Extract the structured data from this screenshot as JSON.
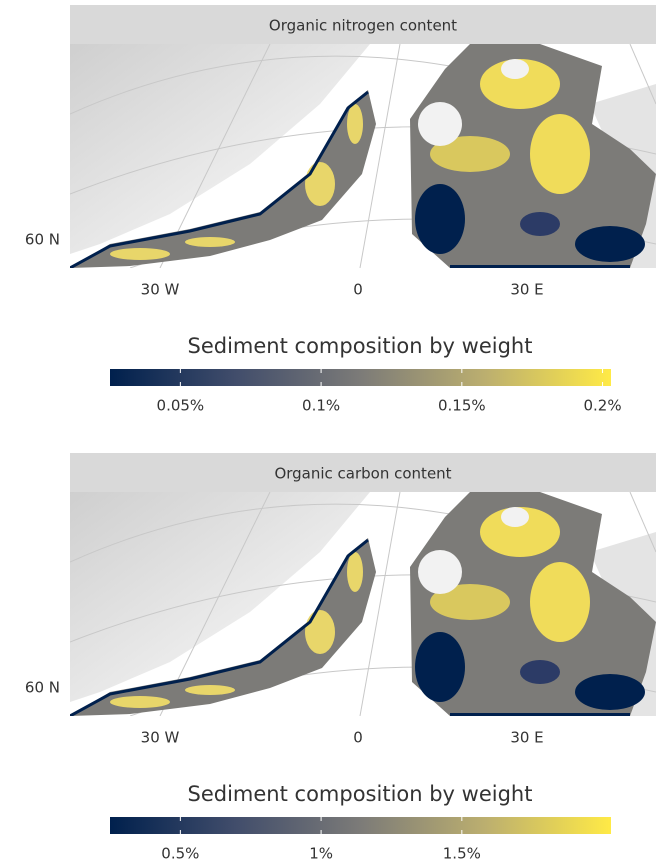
{
  "panels": [
    {
      "title": "Organic nitrogen content",
      "lat_label": "60 N",
      "lon_labels": [
        "30 W",
        "0",
        "30 E"
      ],
      "legend": {
        "title": "Sediment composition by weight",
        "lim": [
          0.025,
          0.203
        ],
        "ticks": [
          {
            "value": 0.05,
            "label": "0.05%"
          },
          {
            "value": 0.1,
            "label": "0.1%"
          },
          {
            "value": 0.15,
            "label": "0.15%"
          },
          {
            "value": 0.2,
            "label": "0.2%"
          }
        ]
      }
    },
    {
      "title": "Organic carbon content",
      "lat_label": "60 N",
      "lon_labels": [
        "30 W",
        "0",
        "30 E"
      ],
      "legend": {
        "title": "Sediment composition by weight",
        "lim": [
          0.25,
          2.03
        ],
        "ticks": [
          {
            "value": 0.5,
            "label": "0.5%"
          },
          {
            "value": 1,
            "label": "1%"
          },
          {
            "value": 1.5,
            "label": "1.5%"
          }
        ]
      }
    }
  ]
}
